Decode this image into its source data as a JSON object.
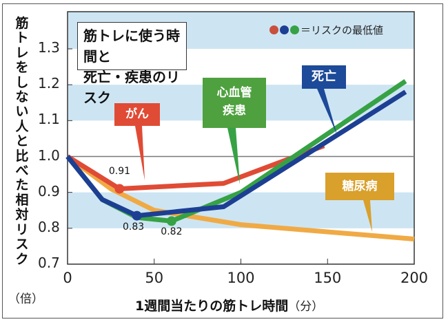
{
  "chart_data": {
    "type": "line",
    "title": "筋トレに使う時間と死亡・疾患のリスク",
    "title_lines": [
      "筋トレに使う時間と",
      "死亡・疾患のリスク"
    ],
    "xlabel": "1週間当たりの筋トレ時間",
    "xlabel_unit": "（分）",
    "ylabel": "筋トレをしない人と比べた相対リスク",
    "ylabel_unit": "（倍）",
    "xlim": [
      0,
      200
    ],
    "ylim": [
      0.7,
      1.35
    ],
    "xticks": [
      "0",
      "50",
      "100",
      "150",
      "200"
    ],
    "yticks": [
      "1.3",
      "1.2",
      "1.1",
      "1.0",
      "0.9",
      "0.8",
      "0.7"
    ],
    "legend_note": "＝リスクの最低値",
    "reference_line": 1.0,
    "series": [
      {
        "name": "がん",
        "color": "#e04b35",
        "x": [
          0,
          30,
          90,
          148
        ],
        "y": [
          1.0,
          0.91,
          0.925,
          1.03
        ],
        "min_point": {
          "x": 30,
          "y": 0.91,
          "label": "0.91"
        }
      },
      {
        "name": "心血管疾患",
        "label_lines": [
          "心血管",
          "疾患"
        ],
        "color": "#36a245",
        "x": [
          0,
          20,
          40,
          60,
          100,
          195
        ],
        "y": [
          1.0,
          0.88,
          0.83,
          0.82,
          0.9,
          1.21
        ],
        "min_point": {
          "x": 60,
          "y": 0.82,
          "label": "0.82"
        }
      },
      {
        "name": "死亡",
        "color": "#1d3f93",
        "x": [
          0,
          20,
          40,
          90,
          195
        ],
        "y": [
          1.0,
          0.88,
          0.835,
          0.86,
          1.18
        ],
        "min_point": {
          "x": 40,
          "y": 0.835,
          "label": "0.83"
        }
      },
      {
        "name": "糖尿病",
        "color": "#f0aa45",
        "x": [
          0,
          25,
          50,
          100,
          200
        ],
        "y": [
          1.0,
          0.91,
          0.85,
          0.81,
          0.77
        ]
      }
    ]
  }
}
